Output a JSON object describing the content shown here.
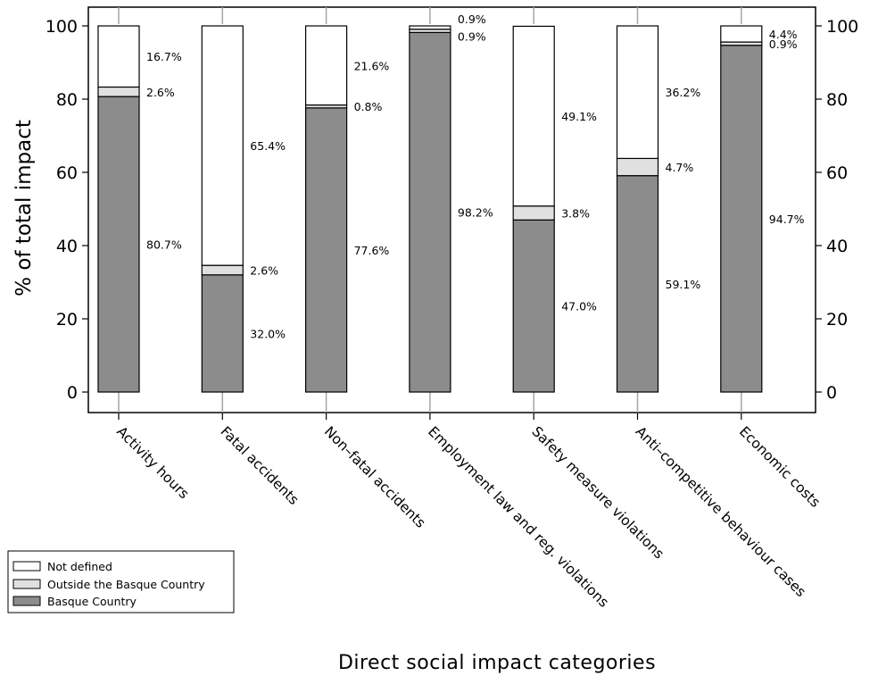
{
  "chart_data": {
    "type": "bar",
    "stacked": true,
    "categories": [
      "Activity hours",
      "Fatal accidents",
      "Non–fatal accidents",
      "Employment law and reg. violations",
      "Safety measure violations",
      "Anti–competitive behaviour cases",
      "Economic costs"
    ],
    "series": [
      {
        "name": "Basque Country",
        "color": "#8c8c8c",
        "values": [
          80.7,
          32.0,
          77.6,
          98.2,
          47.0,
          59.1,
          94.7
        ],
        "labels": [
          "80.7%",
          "32.0%",
          "77.6%",
          "98.2%",
          "47.0%",
          "59.1%",
          "94.7%"
        ]
      },
      {
        "name": "Outside the Basque Country",
        "color": "#e0e0e0",
        "values": [
          2.6,
          2.6,
          0.8,
          0.9,
          3.8,
          4.7,
          0.9
        ],
        "labels": [
          "2.6%",
          "2.6%",
          "0.8%",
          "0.9%",
          "3.8%",
          "4.7%",
          "0.9%"
        ]
      },
      {
        "name": "Not defined",
        "color": "#ffffff",
        "values": [
          16.7,
          65.4,
          21.6,
          0.9,
          49.1,
          36.2,
          4.4
        ],
        "labels": [
          "16.7%",
          "65.4%",
          "21.6%",
          "0.9%",
          "49.1%",
          "36.2%",
          "4.4%"
        ]
      }
    ],
    "title": "",
    "xlabel": "Direct social impact categories",
    "ylabel": "% of total impact",
    "ylim": [
      0,
      100
    ],
    "yticks": [
      "0",
      "20",
      "40",
      "60",
      "80",
      "100"
    ],
    "grid": false,
    "legend_position": "bottom-left",
    "legend_entries": [
      "Not defined",
      "Outside the Basque Country",
      "Basque Country"
    ]
  }
}
